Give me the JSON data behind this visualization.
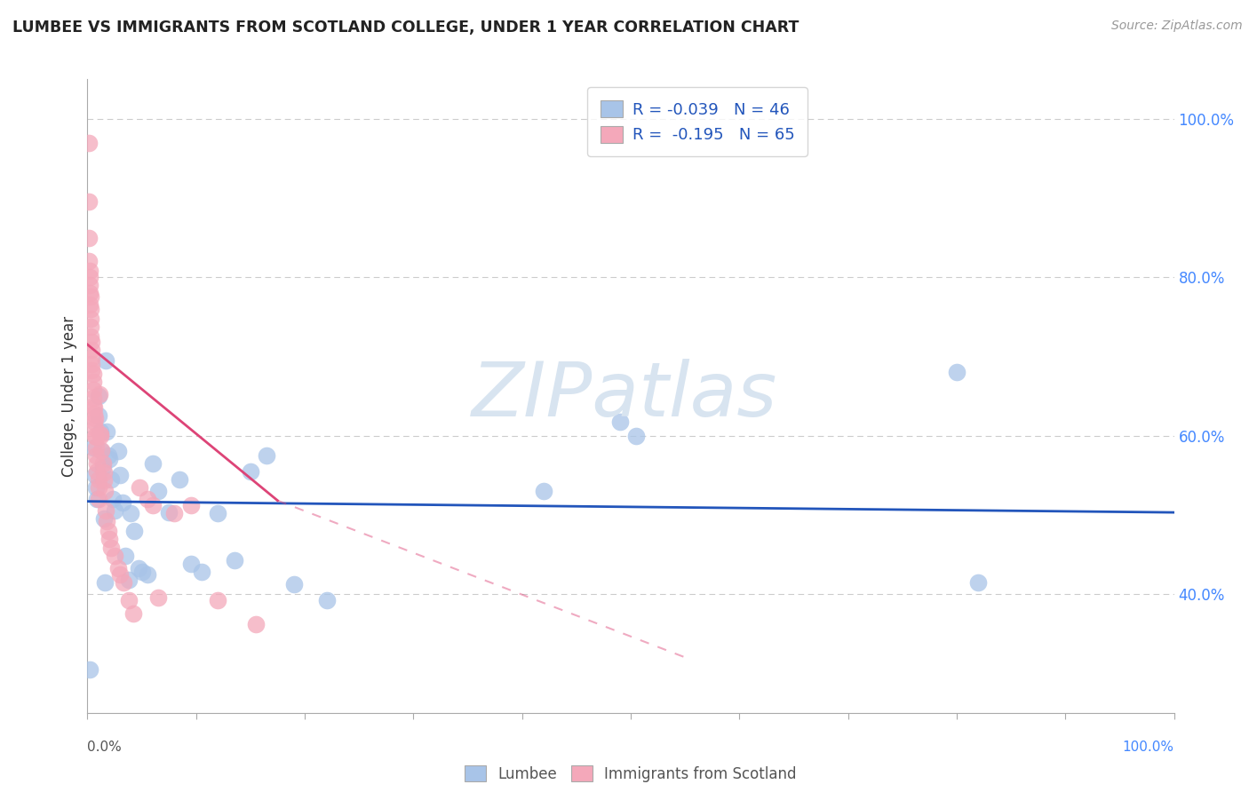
{
  "title": "LUMBEE VS IMMIGRANTS FROM SCOTLAND COLLEGE, UNDER 1 YEAR CORRELATION CHART",
  "source": "Source: ZipAtlas.com",
  "ylabel": "College, Under 1 year",
  "lumbee_R": -0.039,
  "lumbee_N": 46,
  "scotland_R": -0.195,
  "scotland_N": 65,
  "blue_color": "#a8c4e8",
  "pink_color": "#f4a8ba",
  "blue_line_color": "#2255bb",
  "pink_line_color": "#dd4477",
  "right_tick_color": "#4488ff",
  "watermark_color": "#d8e4f0",
  "xlim": [
    0.0,
    1.0
  ],
  "ylim": [
    0.25,
    1.05
  ],
  "yticks": [
    0.4,
    0.6,
    0.8,
    1.0
  ],
  "ytick_labels": [
    "40.0%",
    "60.0%",
    "80.0%",
    "100.0%"
  ],
  "xtick_labels": [
    "0.0%",
    "",
    "",
    "",
    "",
    "",
    "",
    "",
    "",
    "",
    "100.0%"
  ],
  "blue_line": [
    [
      0.0,
      0.517
    ],
    [
      1.0,
      0.503
    ]
  ],
  "pink_line_solid": [
    [
      0.0,
      0.715
    ],
    [
      0.175,
      0.518
    ]
  ],
  "pink_line_dash": [
    [
      0.175,
      0.518
    ],
    [
      0.55,
      0.32
    ]
  ],
  "lumbee_x": [
    0.002,
    0.005,
    0.007,
    0.008,
    0.009,
    0.01,
    0.01,
    0.012,
    0.013,
    0.014,
    0.015,
    0.016,
    0.017,
    0.018,
    0.019,
    0.02,
    0.022,
    0.023,
    0.025,
    0.028,
    0.03,
    0.032,
    0.035,
    0.038,
    0.04,
    0.043,
    0.047,
    0.05,
    0.055,
    0.06,
    0.065,
    0.075,
    0.085,
    0.095,
    0.105,
    0.12,
    0.135,
    0.15,
    0.165,
    0.19,
    0.22,
    0.42,
    0.49,
    0.505,
    0.8,
    0.82
  ],
  "lumbee_y": [
    0.305,
    0.585,
    0.55,
    0.535,
    0.52,
    0.65,
    0.625,
    0.605,
    0.58,
    0.56,
    0.495,
    0.415,
    0.695,
    0.605,
    0.575,
    0.57,
    0.545,
    0.52,
    0.505,
    0.58,
    0.55,
    0.515,
    0.448,
    0.418,
    0.502,
    0.48,
    0.432,
    0.428,
    0.425,
    0.565,
    0.53,
    0.503,
    0.545,
    0.438,
    0.428,
    0.502,
    0.443,
    0.555,
    0.575,
    0.412,
    0.392,
    0.53,
    0.618,
    0.6,
    0.68,
    0.415
  ],
  "scotland_x": [
    0.001,
    0.001,
    0.001,
    0.001,
    0.002,
    0.002,
    0.002,
    0.002,
    0.002,
    0.003,
    0.003,
    0.003,
    0.003,
    0.003,
    0.004,
    0.004,
    0.004,
    0.004,
    0.004,
    0.005,
    0.005,
    0.005,
    0.005,
    0.005,
    0.006,
    0.006,
    0.006,
    0.007,
    0.007,
    0.007,
    0.008,
    0.008,
    0.008,
    0.009,
    0.009,
    0.01,
    0.01,
    0.01,
    0.011,
    0.012,
    0.012,
    0.013,
    0.014,
    0.015,
    0.015,
    0.016,
    0.017,
    0.018,
    0.019,
    0.02,
    0.022,
    0.025,
    0.028,
    0.03,
    0.033,
    0.038,
    0.042,
    0.048,
    0.055,
    0.06,
    0.065,
    0.08,
    0.095,
    0.12,
    0.155
  ],
  "scotland_y": [
    0.97,
    0.895,
    0.85,
    0.82,
    0.808,
    0.8,
    0.79,
    0.78,
    0.765,
    0.775,
    0.76,
    0.748,
    0.738,
    0.725,
    0.718,
    0.708,
    0.698,
    0.69,
    0.682,
    0.678,
    0.668,
    0.658,
    0.648,
    0.638,
    0.635,
    0.628,
    0.618,
    0.622,
    0.61,
    0.6,
    0.598,
    0.585,
    0.575,
    0.565,
    0.555,
    0.545,
    0.535,
    0.52,
    0.652,
    0.602,
    0.6,
    0.582,
    0.565,
    0.554,
    0.543,
    0.53,
    0.505,
    0.492,
    0.48,
    0.47,
    0.458,
    0.448,
    0.432,
    0.425,
    0.415,
    0.392,
    0.375,
    0.535,
    0.52,
    0.512,
    0.395,
    0.502,
    0.512,
    0.392,
    0.362
  ]
}
